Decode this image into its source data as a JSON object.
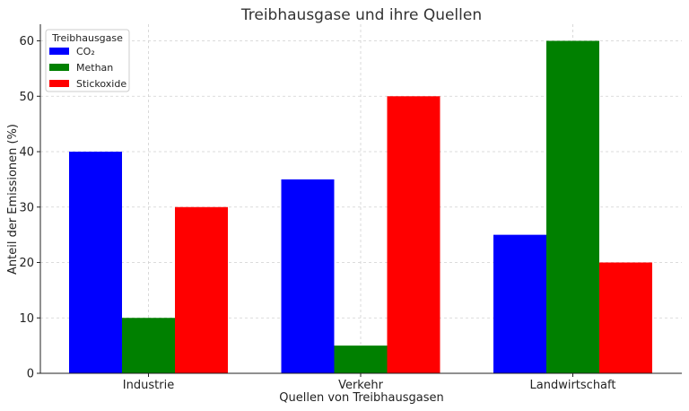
{
  "chart_data": {
    "type": "bar",
    "title": "Treibhausgase und ihre Quellen",
    "xlabel": "Quellen von Treibhausgasen",
    "ylabel": "Anteil der Emissionen (%)",
    "categories": [
      "Industrie",
      "Verkehr",
      "Landwirtschaft"
    ],
    "series": [
      {
        "name": "CO₂",
        "color": "#0000ff",
        "values": [
          40,
          35,
          25
        ]
      },
      {
        "name": "Methan",
        "color": "#008000",
        "values": [
          10,
          5,
          60
        ]
      },
      {
        "name": "Stickoxide",
        "color": "#ff0000",
        "values": [
          30,
          50,
          20
        ]
      }
    ],
    "ylim": [
      0,
      63
    ],
    "yticks": [
      0,
      10,
      20,
      30,
      40,
      50,
      60
    ],
    "grid": true,
    "legend": {
      "title": "Treibhausgase",
      "placement": "top-left"
    }
  }
}
